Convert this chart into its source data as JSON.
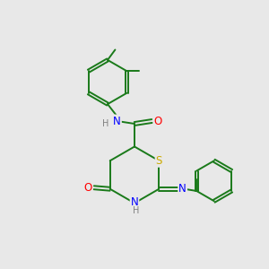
{
  "background_color": "#e8e8e8",
  "atom_colors": {
    "C": "#1a7a1a",
    "N": "#0000ff",
    "O": "#ff0000",
    "S": "#ccaa00",
    "H": "#808080"
  },
  "bond_color": "#1a7a1a",
  "bond_lw": 1.4,
  "fs": 8.5,
  "fs_small": 7.0
}
